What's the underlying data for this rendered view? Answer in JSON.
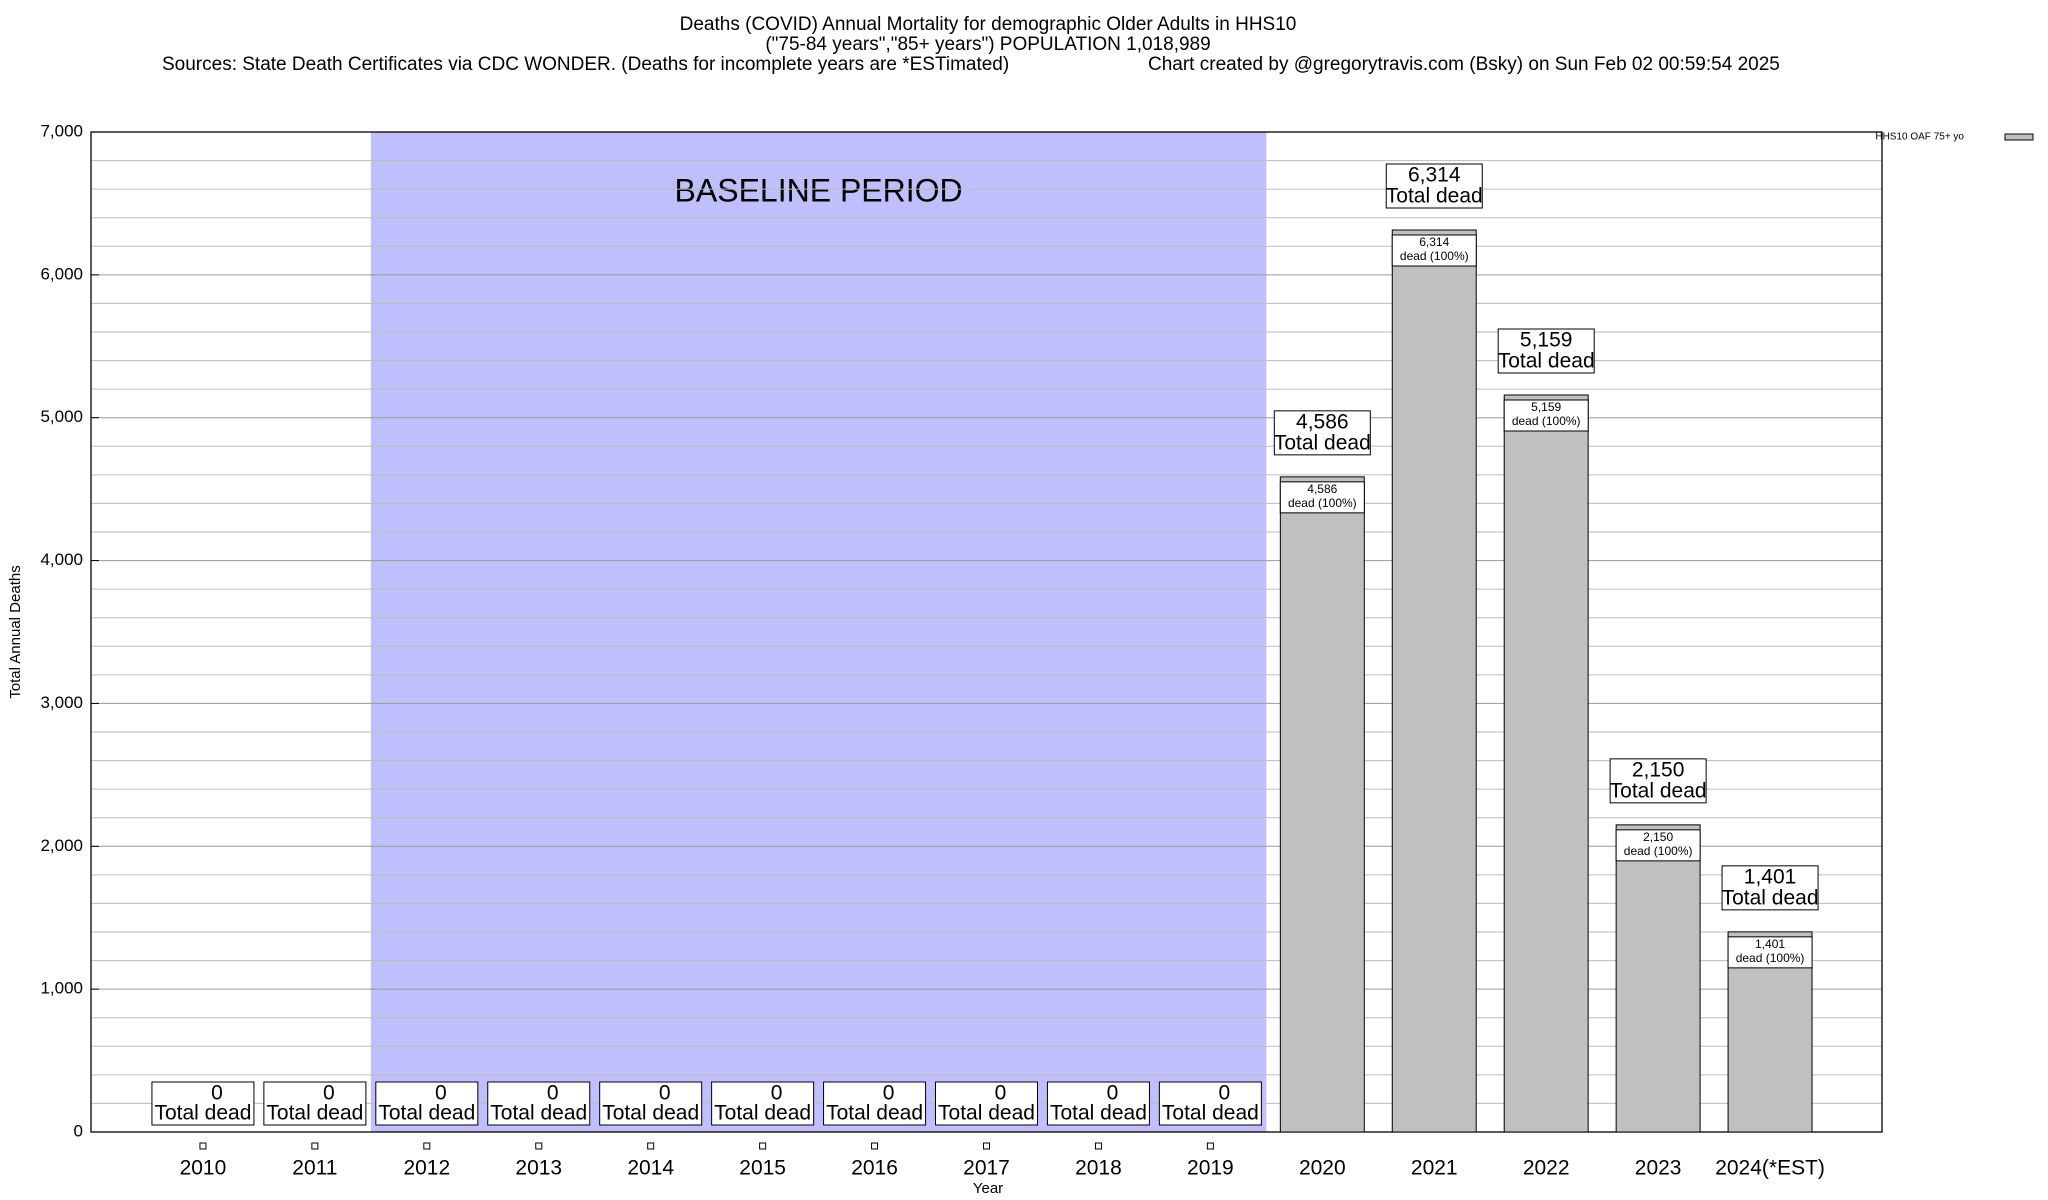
{
  "chart_data": {
    "type": "bar",
    "title": "Deaths (COVID) Annual Mortality for demographic Older Adults in HHS10",
    "subtitle": "(\"75-84 years\",\"85+ years\") POPULATION 1,018,989",
    "source": "Sources: State Death Certificates via CDC WONDER. (Deaths for incomplete years are *ESTimated)",
    "credit": "Chart created by @gregorytravis.com (Bsky) on Sun Feb 02 00:59:54 2025",
    "x_label": "Year",
    "y_label": "Total Annual Deaths",
    "categories": [
      "2010",
      "2011",
      "2012",
      "2013",
      "2014",
      "2015",
      "2016",
      "2017",
      "2018",
      "2019",
      "2020",
      "2021",
      "2022",
      "2023",
      "2024(*EST)"
    ],
    "series": [
      {
        "name": "HHS10 OAF 75+ yo",
        "color": "#c0c0c0",
        "values": [
          0,
          0,
          0,
          0,
          0,
          0,
          0,
          0,
          0,
          0,
          4586,
          6314,
          5159,
          2150,
          1401
        ],
        "value_labels": [
          "0",
          "0",
          "0",
          "0",
          "0",
          "0",
          "0",
          "0",
          "0",
          "0",
          "4,586",
          "6,314",
          "5,159",
          "2,150",
          "1,401"
        ]
      }
    ],
    "total_label": "Total dead",
    "inner_label": "dead (100%)",
    "shaded_region": {
      "label": "BASELINE PERIOD",
      "from": "2012",
      "to": "2019",
      "color": "#bfbffd"
    },
    "ylim": [
      0,
      7000
    ],
    "yticks": [
      0,
      {
        "value": 1000,
        "label": "1,000"
      },
      {
        "value": 2000,
        "label": "2,000"
      },
      {
        "value": 3000,
        "label": "3,000"
      },
      {
        "value": 4000,
        "label": "4,000"
      },
      {
        "value": 5000,
        "label": "5,000"
      },
      {
        "value": 6000,
        "label": "6,000"
      },
      {
        "value": 7000,
        "label": "7,000"
      }
    ],
    "minor_yticks": [
      200,
      400,
      600,
      800,
      1200,
      1400,
      1600,
      1800,
      2200,
      2400,
      2600,
      2800,
      3200,
      3400,
      3600,
      3800,
      4200,
      4400,
      4600,
      4800,
      5200,
      5400,
      5600,
      5800,
      6200,
      6400,
      6600,
      6800
    ],
    "grid": true,
    "legend": "top-right"
  }
}
